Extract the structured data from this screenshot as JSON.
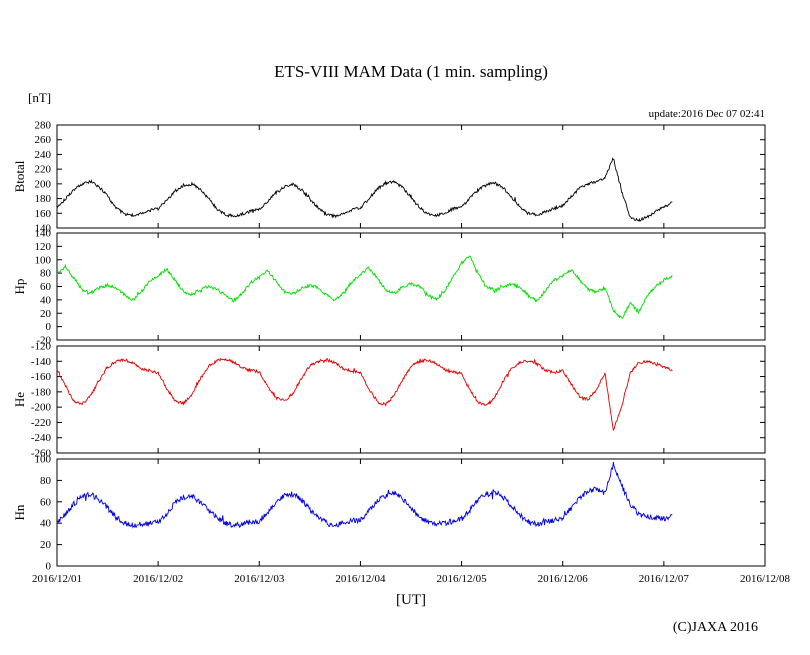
{
  "header": {
    "title": "ETS-VIII MAM Data (1 min. sampling)",
    "unit_label": "[nT]",
    "update_label": "update:2016 Dec 07 02:41"
  },
  "footer": {
    "x_axis_label": "[UT]",
    "copyright": "(C)JAXA 2016"
  },
  "chart_data": {
    "type": "line",
    "title": "ETS-VIII MAM Data (1 min. sampling)",
    "xlabel": "[UT]",
    "ylabel_unit": "[nT]",
    "x_tick_labels": [
      "2016/12/01",
      "2016/12/02",
      "2016/12/03",
      "2016/12/04",
      "2016/12/05",
      "2016/12/06",
      "2016/12/07",
      "2016/12/08"
    ],
    "x_range_days": [
      0,
      7
    ],
    "data_end_day": 6.083,
    "sample_interval_hours": 2,
    "legend": "none",
    "grid": false,
    "panels": [
      {
        "name": "Btotal",
        "ylabel": "Btotal",
        "color": "#000000",
        "ylim": [
          140,
          280
        ],
        "ytick_step": 20,
        "noise": 2.0,
        "values": [
          168,
          180,
          192,
          200,
          203,
          196,
          183,
          168,
          159,
          157,
          160,
          164,
          166,
          178,
          190,
          198,
          200,
          193,
          180,
          166,
          158,
          156,
          159,
          163,
          165,
          176,
          188,
          196,
          199,
          192,
          180,
          167,
          158,
          156,
          160,
          165,
          167,
          180,
          193,
          201,
          203,
          195,
          182,
          168,
          159,
          157,
          161,
          166,
          168,
          181,
          192,
          199,
          201,
          194,
          181,
          168,
          160,
          158,
          162,
          167,
          170,
          183,
          194,
          200,
          203,
          208,
          235,
          190,
          155,
          150,
          155,
          162,
          168,
          175
        ]
      },
      {
        "name": "Hp",
        "ylabel": "Hp",
        "color": "#00dd00",
        "ylim": [
          -20,
          140
        ],
        "ytick_step": 20,
        "noise": 2.2,
        "values": [
          78,
          90,
          72,
          55,
          50,
          58,
          62,
          58,
          48,
          40,
          52,
          68,
          76,
          86,
          70,
          52,
          48,
          56,
          60,
          56,
          46,
          38,
          50,
          66,
          74,
          84,
          68,
          52,
          49,
          57,
          62,
          58,
          47,
          39,
          51,
          67,
          78,
          88,
          72,
          55,
          50,
          59,
          64,
          60,
          48,
          40,
          53,
          75,
          95,
          105,
          78,
          60,
          54,
          60,
          64,
          58,
          46,
          38,
          55,
          70,
          76,
          85,
          70,
          56,
          52,
          58,
          25,
          12,
          35,
          22,
          45,
          60,
          70,
          76
        ]
      },
      {
        "name": "He",
        "ylabel": "He",
        "color": "#dd0000",
        "ylim": [
          -260,
          -120
        ],
        "ytick_step": 20,
        "noise": 1.8,
        "values": [
          -150,
          -172,
          -192,
          -196,
          -185,
          -165,
          -148,
          -140,
          -138,
          -142,
          -150,
          -152,
          -155,
          -175,
          -192,
          -195,
          -183,
          -163,
          -146,
          -139,
          -137,
          -141,
          -149,
          -152,
          -154,
          -172,
          -188,
          -192,
          -182,
          -162,
          -146,
          -140,
          -138,
          -142,
          -150,
          -153,
          -155,
          -176,
          -193,
          -197,
          -185,
          -164,
          -147,
          -140,
          -138,
          -143,
          -151,
          -154,
          -156,
          -178,
          -194,
          -198,
          -186,
          -165,
          -148,
          -141,
          -139,
          -144,
          -152,
          -155,
          -152,
          -170,
          -186,
          -190,
          -178,
          -155,
          -230,
          -200,
          -155,
          -142,
          -140,
          -143,
          -147,
          -152
        ]
      },
      {
        "name": "Hn",
        "ylabel": "Hn",
        "color": "#0000dd",
        "ylim": [
          0,
          100
        ],
        "ytick_step": 20,
        "noise": 2.5,
        "values": [
          40,
          48,
          58,
          65,
          67,
          62,
          54,
          46,
          40,
          38,
          39,
          40,
          41,
          49,
          59,
          64,
          65,
          60,
          52,
          45,
          40,
          38,
          39,
          41,
          42,
          50,
          60,
          66,
          67,
          62,
          53,
          46,
          40,
          38,
          40,
          42,
          43,
          51,
          61,
          66,
          68,
          63,
          54,
          46,
          41,
          39,
          40,
          42,
          44,
          52,
          62,
          67,
          69,
          64,
          55,
          47,
          41,
          39,
          41,
          43,
          45,
          54,
          64,
          70,
          72,
          68,
          95,
          75,
          58,
          48,
          46,
          45,
          44,
          46
        ]
      }
    ]
  }
}
